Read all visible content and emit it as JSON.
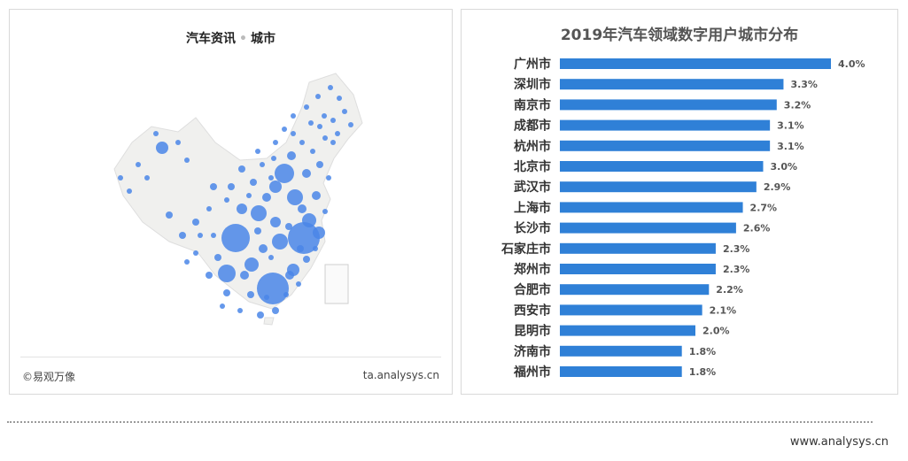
{
  "left_panel": {
    "title_part1": "汽车资讯",
    "title_separator": "•",
    "title_part2": "城市",
    "footer_left": "©易观万像",
    "footer_right": "ta.analysys.cn",
    "map_land_color": "#f0f0ee",
    "bubble_color": "#4a86e8"
  },
  "site_url": "www.analysys.cn",
  "chart_data": {
    "type": "bar",
    "orientation": "horizontal",
    "title": "2019年汽车领域数字用户城市分布",
    "categories": [
      "广州市",
      "深圳市",
      "南京市",
      "成都市",
      "杭州市",
      "北京市",
      "武汉市",
      "上海市",
      "长沙市",
      "石家庄市",
      "郑州市",
      "合肥市",
      "西安市",
      "昆明市",
      "济南市",
      "福州市"
    ],
    "values": [
      4.0,
      3.3,
      3.2,
      3.1,
      3.1,
      3.0,
      2.9,
      2.7,
      2.6,
      2.3,
      2.3,
      2.2,
      2.1,
      2.0,
      1.8,
      1.8
    ],
    "value_labels": [
      "4.0%",
      "3.3%",
      "3.2%",
      "3.1%",
      "3.1%",
      "3.0%",
      "2.9%",
      "2.7%",
      "2.6%",
      "2.3%",
      "2.3%",
      "2.2%",
      "2.1%",
      "2.0%",
      "1.8%",
      "1.8%"
    ],
    "unit": "%",
    "xlim": [
      0,
      4.0
    ],
    "bar_color": "#2f80d7",
    "grid": false,
    "legend": "none"
  }
}
